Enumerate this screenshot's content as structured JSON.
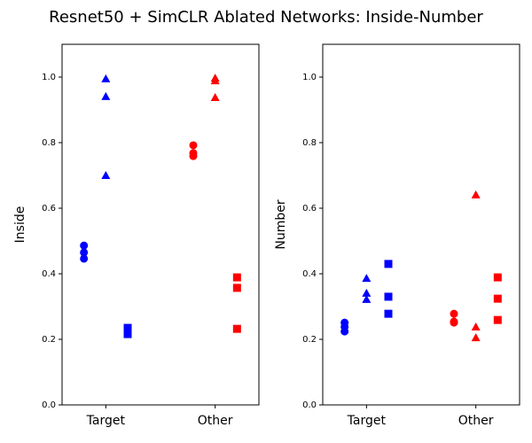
{
  "title": "Resnet50 + SimCLR Ablated Networks: Inside-Number",
  "chart_data": [
    {
      "type": "scatter",
      "ylabel": "Inside",
      "categories": [
        "Target",
        "Other"
      ],
      "xlim": [
        -0.4,
        1.4
      ],
      "ylim": [
        0,
        1.1
      ],
      "yticks": [
        {
          "value": 0,
          "label": "0.0"
        },
        0.2,
        0.4,
        0.6,
        0.8,
        {
          "value": 1,
          "label": "1.0"
        }
      ],
      "series": [
        {
          "marker": "circle",
          "color": "#0000ff",
          "x": [
            -0.2,
            -0.2,
            -0.2
          ],
          "values": [
            0.486,
            0.465,
            0.446
          ]
        },
        {
          "marker": "triangle",
          "color": "#0000ff",
          "x": [
            0,
            0,
            0
          ],
          "values": [
            0.995,
            0.941,
            0.7
          ]
        },
        {
          "marker": "square",
          "color": "#0000ff",
          "x": [
            0.2,
            0.2,
            0.2
          ],
          "values": [
            0.235,
            0.225,
            0.216
          ]
        },
        {
          "marker": "circle",
          "color": "#ff0000",
          "x": [
            0.8,
            0.8,
            0.8
          ],
          "values": [
            0.792,
            0.768,
            0.759
          ]
        },
        {
          "marker": "triangle",
          "color": "#ff0000",
          "x": [
            1,
            1,
            1
          ],
          "values": [
            0.997,
            0.989,
            0.938
          ]
        },
        {
          "marker": "square",
          "color": "#ff0000",
          "x": [
            1.2,
            1.2,
            1.2
          ],
          "values": [
            0.389,
            0.357,
            0.232
          ]
        }
      ]
    },
    {
      "type": "scatter",
      "ylabel": "Number",
      "categories": [
        "Target",
        "Other"
      ],
      "xlim": [
        -0.4,
        1.4
      ],
      "ylim": [
        0,
        1.1
      ],
      "yticks": [
        {
          "value": 0,
          "label": "0.0"
        },
        0.2,
        0.4,
        0.6,
        0.8,
        {
          "value": 1,
          "label": "1.0"
        }
      ],
      "series": [
        {
          "marker": "circle",
          "color": "#0000ff",
          "x": [
            -0.2,
            -0.2,
            -0.2
          ],
          "values": [
            0.251,
            0.238,
            0.224
          ]
        },
        {
          "marker": "triangle",
          "color": "#0000ff",
          "x": [
            0,
            0,
            0
          ],
          "values": [
            0.386,
            0.341,
            0.322
          ]
        },
        {
          "marker": "square",
          "color": "#0000ff",
          "x": [
            0.2,
            0.2,
            0.2
          ],
          "values": [
            0.43,
            0.33,
            0.278
          ]
        },
        {
          "marker": "circle",
          "color": "#ff0000",
          "x": [
            0.8,
            0.8,
            0.8
          ],
          "values": [
            0.278,
            0.254,
            0.251
          ]
        },
        {
          "marker": "triangle",
          "color": "#ff0000",
          "x": [
            1,
            1,
            1
          ],
          "values": [
            0.641,
            0.238,
            0.205
          ]
        },
        {
          "marker": "square",
          "color": "#ff0000",
          "x": [
            1.2,
            1.2,
            1.2
          ],
          "values": [
            0.389,
            0.324,
            0.259
          ]
        }
      ]
    }
  ]
}
